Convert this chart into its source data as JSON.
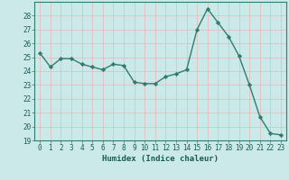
{
  "x": [
    0,
    1,
    2,
    3,
    4,
    5,
    6,
    7,
    8,
    9,
    10,
    11,
    12,
    13,
    14,
    15,
    16,
    17,
    18,
    19,
    20,
    21,
    22,
    23
  ],
  "y": [
    25.3,
    24.3,
    24.9,
    24.9,
    24.5,
    24.3,
    24.1,
    24.5,
    24.4,
    23.2,
    23.1,
    23.1,
    23.6,
    23.8,
    24.1,
    27.0,
    28.5,
    27.5,
    26.5,
    25.1,
    23.0,
    20.7,
    19.5,
    19.4
  ],
  "line_color": "#2e7d6e",
  "marker": "D",
  "marker_size": 2.2,
  "background_color": "#cce9e9",
  "grid_color": "#e8b8b8",
  "xlabel": "Humidex (Indice chaleur)",
  "ylim": [
    19,
    29
  ],
  "xlim": [
    -0.5,
    23.5
  ],
  "yticks": [
    19,
    20,
    21,
    22,
    23,
    24,
    25,
    26,
    27,
    28
  ],
  "xticks": [
    0,
    1,
    2,
    3,
    4,
    5,
    6,
    7,
    8,
    9,
    10,
    11,
    12,
    13,
    14,
    15,
    16,
    17,
    18,
    19,
    20,
    21,
    22,
    23
  ],
  "tick_fontsize": 5.5,
  "xlabel_fontsize": 6.5,
  "linewidth": 1.0
}
